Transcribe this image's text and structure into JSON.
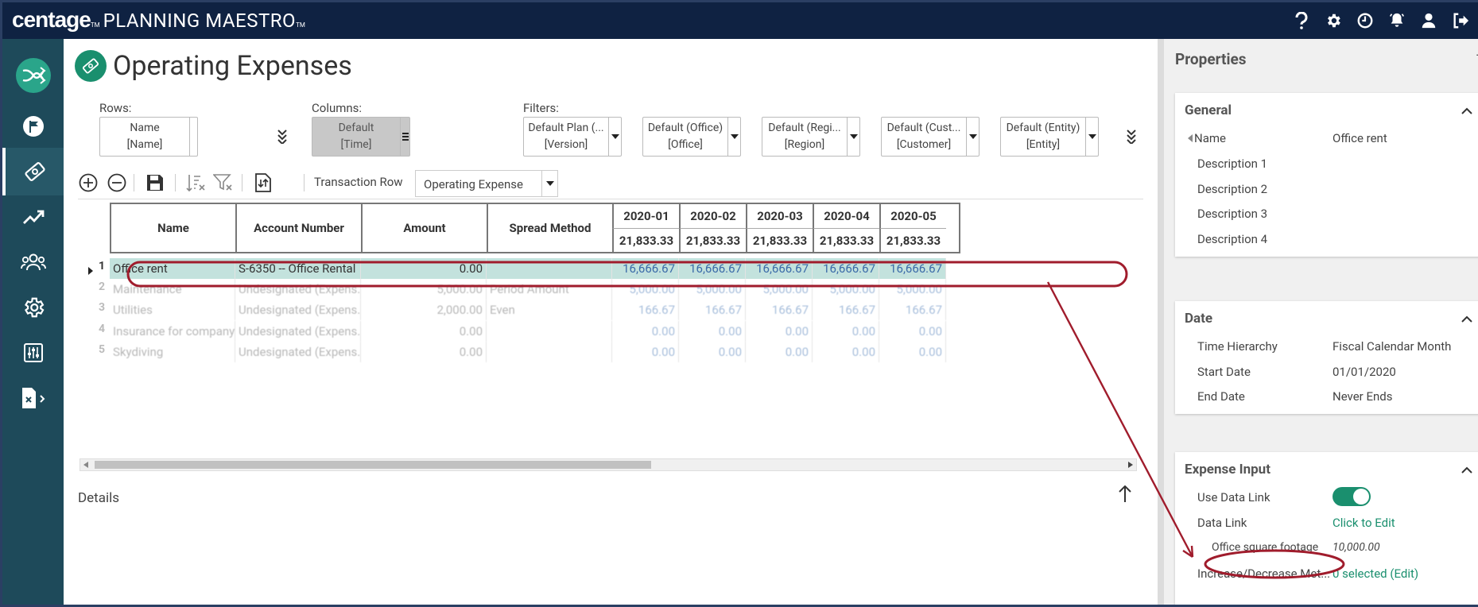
{
  "brand": {
    "name": "centage",
    "tm": "TM",
    "product": "PLANNING MAESTRO",
    "product_tm": "TM"
  },
  "topbar": {
    "icons": [
      "help-icon",
      "gear-icon",
      "clock-icon",
      "bell-icon",
      "user-icon",
      "logout-icon"
    ]
  },
  "sidebar": {
    "items": [
      "logo-icon",
      "flag-icon",
      "money-icon",
      "trend-icon",
      "people-icon",
      "settings-icon",
      "sliders-icon",
      "report-icon"
    ]
  },
  "page": {
    "title": "Operating Expenses"
  },
  "pivot": {
    "rows_label": "Rows:",
    "columns_label": "Columns:",
    "filters_label": "Filters:",
    "rows": [
      {
        "line1": "Name",
        "line2": "[Name]"
      }
    ],
    "columns": [
      {
        "line1": "Default",
        "line2": "[Time]"
      }
    ],
    "filters": [
      {
        "line1": "Default Plan (...",
        "line2": "[Version]"
      },
      {
        "line1": "Default (Office)",
        "line2": "[Office]"
      },
      {
        "line1": "Default (Regi...",
        "line2": "[Region]"
      },
      {
        "line1": "Default (Cust...",
        "line2": "[Customer]"
      },
      {
        "line1": "Default (Entity)",
        "line2": "[Entity]"
      }
    ]
  },
  "toolbar": {
    "transaction_label": "Transaction Row",
    "transaction_value": "Operating Expense"
  },
  "grid": {
    "headers": [
      "Name",
      "Account Number",
      "Amount",
      "Spread Method"
    ],
    "periods": [
      "2020-01",
      "2020-02",
      "2020-03",
      "2020-04",
      "2020-05"
    ],
    "totals": [
      "21,833.33",
      "21,833.33",
      "21,833.33",
      "21,833.33",
      "21,833.33"
    ],
    "rows": [
      {
        "num": "1",
        "name": "Office rent",
        "account": "S-6350 -- Office Rental",
        "amount": "0.00",
        "spread": "",
        "values": [
          "16,666.67",
          "16,666.67",
          "16,666.67",
          "16,666.67",
          "16,666.67"
        ]
      },
      {
        "num": "2",
        "name": "Maintenance",
        "account": "Undesignated (Expens...",
        "amount": "5,000.00",
        "spread": "Period Amount",
        "values": [
          "5,000.00",
          "5,000.00",
          "5,000.00",
          "5,000.00",
          "5,000.00"
        ]
      },
      {
        "num": "3",
        "name": "Utilities",
        "account": "Undesignated (Expens...",
        "amount": "2,000.00",
        "spread": "Even",
        "values": [
          "166.67",
          "166.67",
          "166.67",
          "166.67",
          "166.67"
        ]
      },
      {
        "num": "4",
        "name": "Insurance for company...",
        "account": "Undesignated (Expens...",
        "amount": "0.00",
        "spread": "",
        "values": [
          "0.00",
          "0.00",
          "0.00",
          "0.00",
          "0.00"
        ]
      },
      {
        "num": "5",
        "name": "Skydiving",
        "account": "Undesignated (Expens...",
        "amount": "0.00",
        "spread": "",
        "values": [
          "0.00",
          "0.00",
          "0.00",
          "0.00",
          "0.00"
        ]
      }
    ]
  },
  "details": {
    "label": "Details"
  },
  "properties": {
    "title": "Properties",
    "collapse": "-",
    "general": {
      "title": "General",
      "rows": [
        {
          "label": "Name",
          "value": "Office rent"
        },
        {
          "label": "Description 1",
          "value": ""
        },
        {
          "label": "Description 2",
          "value": ""
        },
        {
          "label": "Description 3",
          "value": ""
        },
        {
          "label": "Description 4",
          "value": ""
        }
      ]
    },
    "date": {
      "title": "Date",
      "rows": [
        {
          "label": "Time Hierarchy",
          "value": "Fiscal Calendar Month"
        },
        {
          "label": "Start Date",
          "value": "01/01/2020"
        },
        {
          "label": "End Date",
          "value": "Never Ends"
        }
      ]
    },
    "expense": {
      "title": "Expense Input",
      "use_data_link": "Use Data Link",
      "use_data_link_on": true,
      "data_link": "Data Link",
      "data_link_value": "Click to Edit",
      "sq_label": "Office square footage",
      "sq_value": "10,000.00",
      "incdec_label": "Increase/Decrease Met...",
      "incdec_value": "0 selected (Edit)"
    }
  },
  "colors": {
    "topbar": "#0f2242",
    "sidebar": "#1e4a5a",
    "accent": "#1a8f6e",
    "selected_row": "#c3e2dd",
    "annotation": "#a01c2c"
  }
}
